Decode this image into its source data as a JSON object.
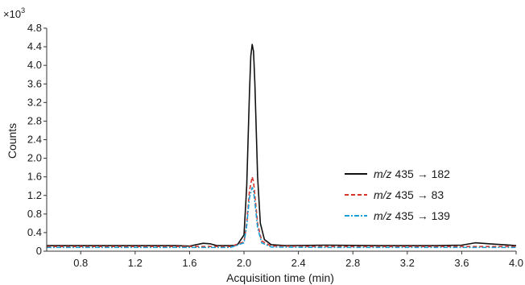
{
  "chart_data": {
    "type": "line",
    "title": "",
    "xlabel": "Acquisition time (min)",
    "ylabel": "Counts",
    "y_multiplier_label": "×10",
    "y_multiplier_exp": "3",
    "xlim": [
      0.55,
      4.0
    ],
    "ylim": [
      0,
      4.8
    ],
    "x_ticks": [
      "0.8",
      "1.2",
      "1.6",
      "2.0",
      "2.4",
      "2.8",
      "3.2",
      "3.6",
      "4.0"
    ],
    "y_ticks": [
      "0",
      "0.4",
      "0.8",
      "1.2",
      "1.6",
      "2.0",
      "2.4",
      "2.8",
      "3.2",
      "3.6",
      "4.0",
      "4.4",
      "4.8"
    ],
    "legend_position": "right",
    "series": [
      {
        "name_italic": "m/z",
        "name_rest": " 435 → 182",
        "color": "#111111",
        "dash": "solid",
        "x": [
          0.55,
          0.8,
          1.2,
          1.5,
          1.6,
          1.7,
          1.75,
          1.8,
          1.9,
          1.95,
          2.0,
          2.02,
          2.04,
          2.05,
          2.06,
          2.07,
          2.08,
          2.1,
          2.12,
          2.15,
          2.2,
          2.3,
          2.6,
          3.0,
          3.4,
          3.6,
          3.7,
          3.8,
          4.0
        ],
        "y": [
          0.12,
          0.12,
          0.12,
          0.12,
          0.11,
          0.17,
          0.16,
          0.12,
          0.12,
          0.13,
          0.35,
          1.4,
          3.4,
          4.2,
          4.45,
          4.3,
          3.6,
          1.6,
          0.6,
          0.25,
          0.14,
          0.12,
          0.13,
          0.12,
          0.12,
          0.13,
          0.18,
          0.16,
          0.12
        ]
      },
      {
        "name_italic": "m/z",
        "name_rest": " 435 → 83",
        "color": "#d9342b",
        "dash": "5,3",
        "x": [
          0.55,
          0.8,
          1.2,
          1.6,
          1.9,
          2.0,
          2.02,
          2.04,
          2.06,
          2.07,
          2.08,
          2.1,
          2.13,
          2.2,
          2.6,
          3.0,
          3.6,
          4.0
        ],
        "y": [
          0.1,
          0.1,
          0.1,
          0.1,
          0.1,
          0.2,
          0.6,
          1.3,
          1.6,
          1.5,
          1.2,
          0.6,
          0.22,
          0.11,
          0.1,
          0.1,
          0.1,
          0.1
        ]
      },
      {
        "name_italic": "m/z",
        "name_rest": " 435 → 139",
        "color": "#1a9fd4",
        "dash": "6,2,2,2",
        "x": [
          0.55,
          0.8,
          1.2,
          1.6,
          1.9,
          2.0,
          2.02,
          2.04,
          2.06,
          2.07,
          2.08,
          2.1,
          2.13,
          2.2,
          2.6,
          3.0,
          3.6,
          4.0
        ],
        "y": [
          0.08,
          0.08,
          0.08,
          0.08,
          0.08,
          0.18,
          0.55,
          1.15,
          1.37,
          1.3,
          1.05,
          0.5,
          0.18,
          0.09,
          0.08,
          0.08,
          0.08,
          0.08
        ]
      }
    ]
  }
}
